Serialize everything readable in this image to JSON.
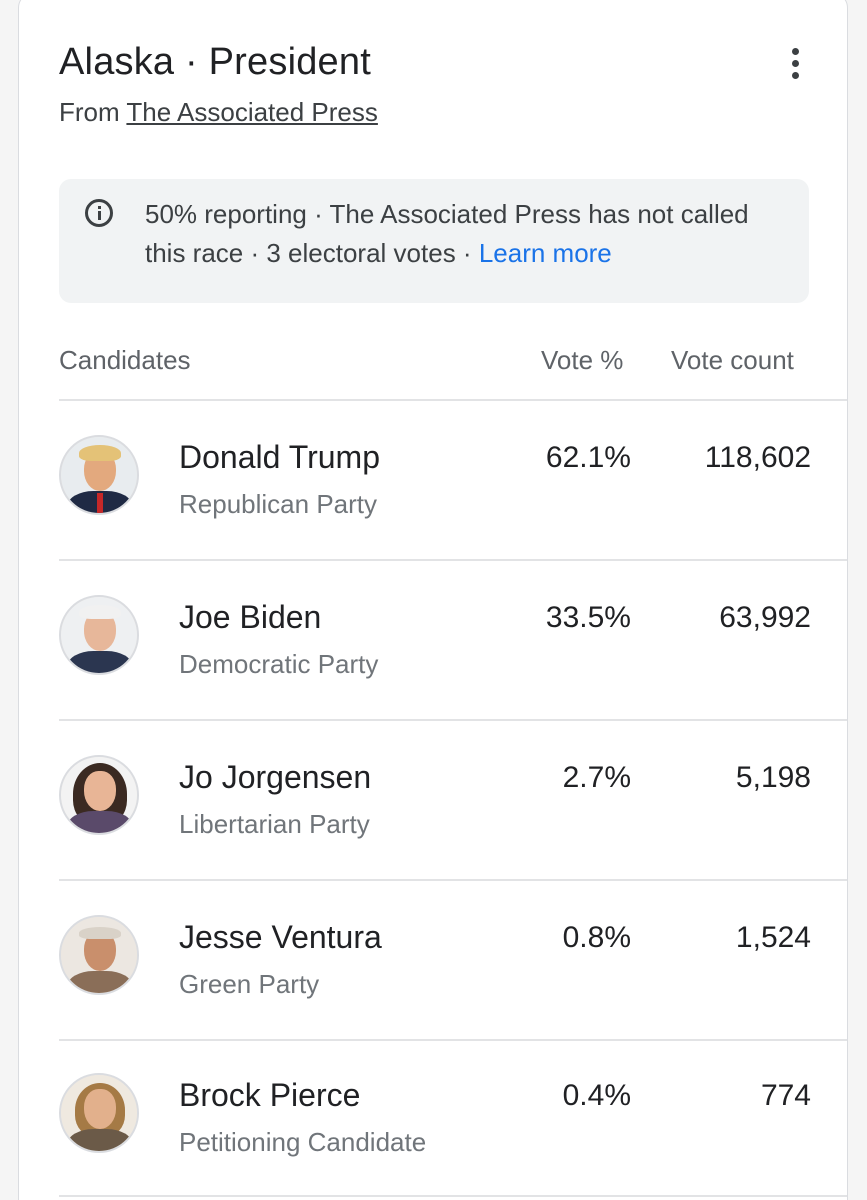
{
  "header": {
    "state": "Alaska",
    "separator": " · ",
    "race": "President",
    "source_prefix": "From ",
    "source_name": "The Associated Press"
  },
  "notice": {
    "text": "50% reporting · The Associated Press has not called this race · 3 electoral votes · ",
    "learn_more": "Learn more"
  },
  "table": {
    "columns": {
      "candidates": "Candidates",
      "vote_pct": "Vote %",
      "vote_count": "Vote count"
    },
    "rows": [
      {
        "name": "Donald Trump",
        "party": "Republican Party",
        "vote_pct": "62.1%",
        "vote_count": "118,602"
      },
      {
        "name": "Joe Biden",
        "party": "Democratic Party",
        "vote_pct": "33.5%",
        "vote_count": "63,992"
      },
      {
        "name": "Jo Jorgensen",
        "party": "Libertarian Party",
        "vote_pct": "2.7%",
        "vote_count": "5,198"
      },
      {
        "name": "Jesse Ventura",
        "party": "Green Party",
        "vote_pct": "0.8%",
        "vote_count": "1,524"
      },
      {
        "name": "Brock Pierce",
        "party": "Petitioning Candidate",
        "vote_pct": "0.4%",
        "vote_count": "774"
      }
    ]
  },
  "colors": {
    "link": "#1a73e8",
    "notice_bg": "#f1f3f4",
    "muted_text": "#70757a"
  },
  "icons": {
    "info": "info-icon",
    "more": "more-vertical-icon"
  }
}
